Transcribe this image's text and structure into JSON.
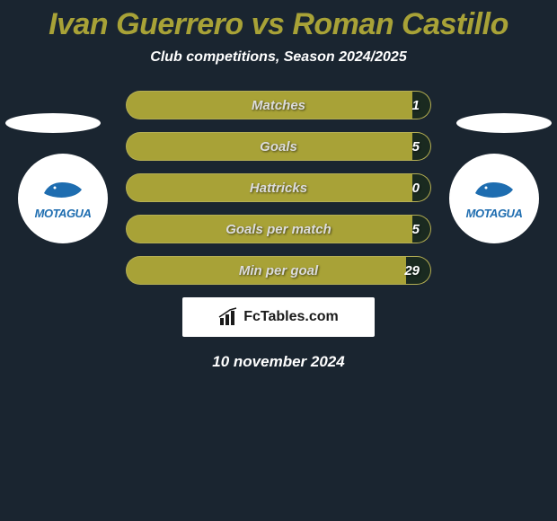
{
  "title": {
    "player1": "Ivan Guerrero",
    "vs": "vs",
    "player2": "Roman Castillo",
    "color": "#a8a237",
    "fontsize": 34
  },
  "subtitle": {
    "text": "Club competitions, Season 2024/2025",
    "color": "#ffffff",
    "fontsize": 16
  },
  "stats": {
    "bar_bg": "#a8a237",
    "bar_fill_left": "#1a2a20",
    "bar_fill_right": "#1a2a20",
    "label_fontsize": 15,
    "value_fontsize": 15,
    "rows": [
      {
        "label": "Matches",
        "left": "",
        "right": "1",
        "left_pct": 0,
        "right_pct": 6
      },
      {
        "label": "Goals",
        "left": "",
        "right": "5",
        "left_pct": 0,
        "right_pct": 6
      },
      {
        "label": "Hattricks",
        "left": "",
        "right": "0",
        "left_pct": 0,
        "right_pct": 6
      },
      {
        "label": "Goals per match",
        "left": "",
        "right": "5",
        "left_pct": 0,
        "right_pct": 6
      },
      {
        "label": "Min per goal",
        "left": "",
        "right": "29",
        "left_pct": 0,
        "right_pct": 8
      }
    ]
  },
  "clubs": {
    "left": {
      "name": "MOTAGUA",
      "logo_color": "#1e6db0",
      "text_color": "#1e6db0"
    },
    "right": {
      "name": "MOTAGUA",
      "logo_color": "#1e6db0",
      "text_color": "#1e6db0"
    }
  },
  "brand": {
    "text": "FcTables.com"
  },
  "date": {
    "text": "10 november 2024",
    "color": "#ffffff",
    "fontsize": 17
  },
  "background_color": "#1a2530"
}
